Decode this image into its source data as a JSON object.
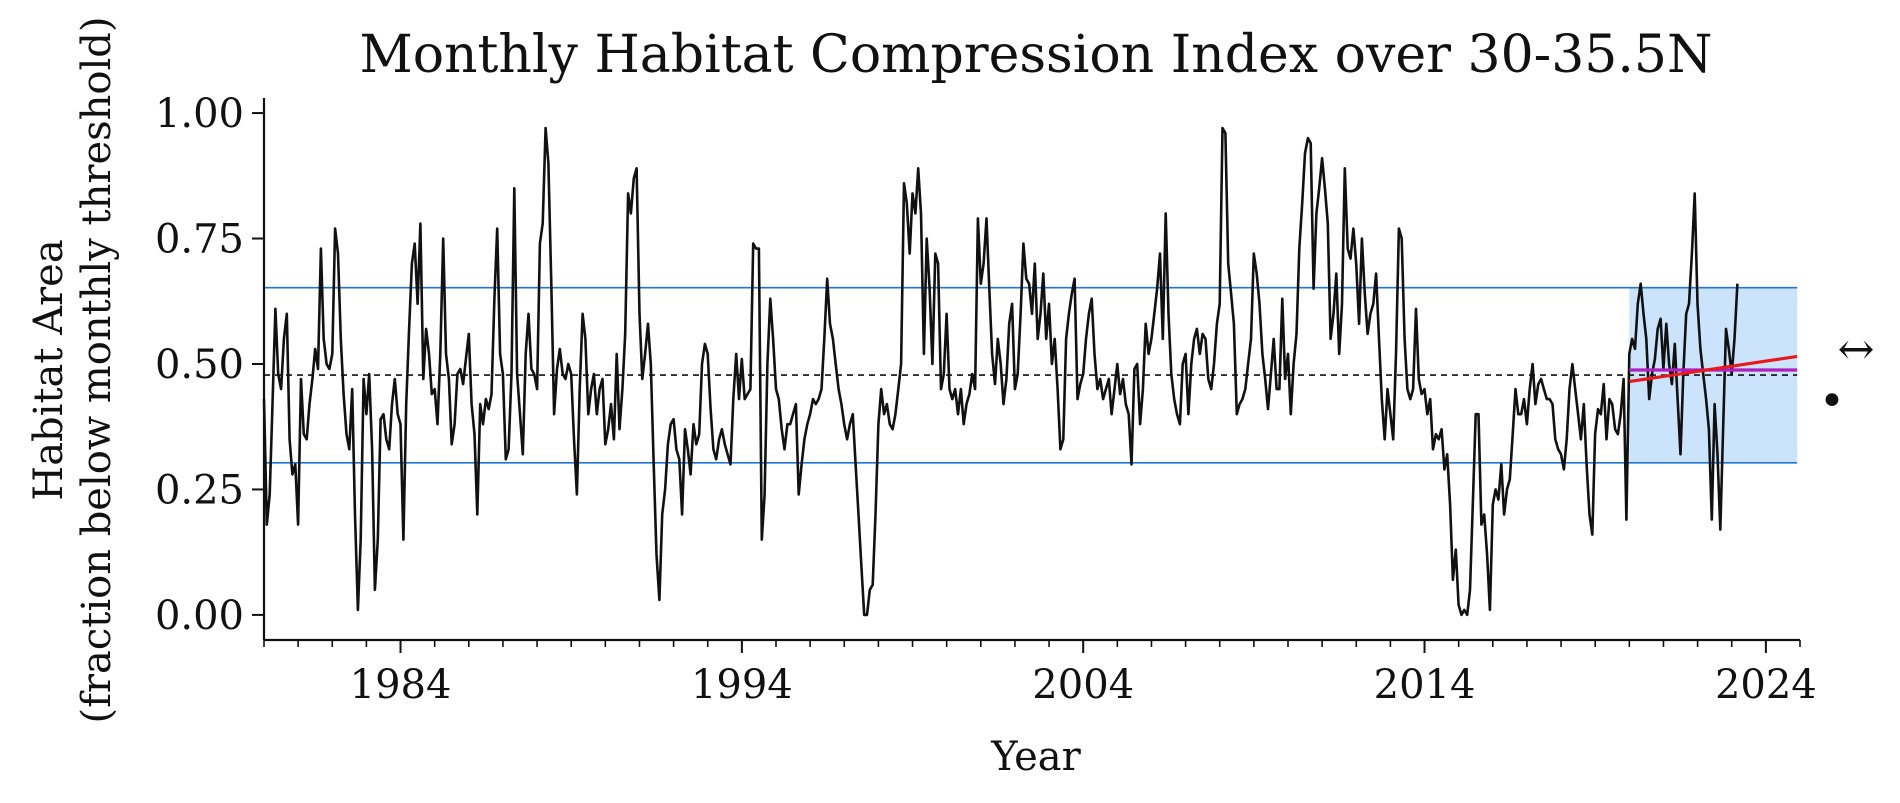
{
  "chart_data": {
    "type": "line",
    "title": "Monthly Habitat Compression Index over 30-35.5N",
    "xlabel": "Year",
    "ylabel_lines": [
      "Habitat Area",
      "(fraction below monthly threshold)"
    ],
    "xlim": [
      1980,
      2025
    ],
    "ylim": [
      -0.05,
      1.03
    ],
    "x_ticks": [
      1984,
      1994,
      2004,
      2014,
      2024
    ],
    "x_tick_labels": [
      "1984",
      "1994",
      "2004",
      "2014",
      "2024"
    ],
    "y_ticks": [
      0.0,
      0.25,
      0.5,
      0.75,
      1.0
    ],
    "y_tick_labels": [
      "0.00",
      "0.25",
      "0.50",
      "0.75",
      "1.00"
    ],
    "grid": false,
    "colors": {
      "series": "#111111",
      "threshold_lines": "#1f77d4",
      "mean_line": "#111111",
      "highlight_fill": "#cce4fb",
      "trend_red": "#e8191c",
      "trend_purple": "#b01fc0"
    },
    "reference_lines": {
      "upper_threshold": 0.652,
      "lower_threshold": 0.303,
      "long_term_mean": 0.478
    },
    "highlight_period": {
      "x": [
        2020.0,
        2024.917
      ],
      "y": [
        0.303,
        0.652
      ]
    },
    "recent_trend": {
      "x": [
        2020.0,
        2024.917
      ],
      "y": [
        0.465,
        0.515
      ]
    },
    "recent_mean": {
      "x": [
        2020.0,
        2024.917
      ],
      "y": 0.488
    },
    "side_markers": {
      "arrow": "↔",
      "dot": "•"
    },
    "series": [
      {
        "x_start": 1980.0,
        "x_step": 0.08333,
        "values": [
          0.43,
          0.18,
          0.24,
          0.42,
          0.61,
          0.48,
          0.45,
          0.55,
          0.6,
          0.35,
          0.28,
          0.3,
          0.18,
          0.47,
          0.36,
          0.35,
          0.42,
          0.47,
          0.53,
          0.49,
          0.73,
          0.55,
          0.5,
          0.49,
          0.52,
          0.77,
          0.72,
          0.55,
          0.44,
          0.36,
          0.33,
          0.45,
          0.2,
          0.01,
          0.15,
          0.47,
          0.4,
          0.48,
          0.33,
          0.05,
          0.15,
          0.39,
          0.4,
          0.35,
          0.33,
          0.42,
          0.47,
          0.4,
          0.38,
          0.15,
          0.42,
          0.57,
          0.7,
          0.74,
          0.62,
          0.78,
          0.47,
          0.57,
          0.52,
          0.44,
          0.45,
          0.38,
          0.52,
          0.75,
          0.52,
          0.47,
          0.34,
          0.38,
          0.48,
          0.49,
          0.46,
          0.51,
          0.56,
          0.42,
          0.36,
          0.2,
          0.42,
          0.38,
          0.43,
          0.41,
          0.44,
          0.63,
          0.77,
          0.52,
          0.48,
          0.31,
          0.33,
          0.48,
          0.85,
          0.48,
          0.4,
          0.32,
          0.52,
          0.6,
          0.49,
          0.48,
          0.45,
          0.74,
          0.78,
          0.97,
          0.9,
          0.66,
          0.4,
          0.49,
          0.53,
          0.48,
          0.47,
          0.5,
          0.48,
          0.35,
          0.24,
          0.45,
          0.6,
          0.55,
          0.4,
          0.45,
          0.48,
          0.4,
          0.45,
          0.47,
          0.34,
          0.37,
          0.42,
          0.35,
          0.52,
          0.37,
          0.45,
          0.56,
          0.84,
          0.8,
          0.87,
          0.89,
          0.6,
          0.47,
          0.52,
          0.58,
          0.5,
          0.3,
          0.12,
          0.03,
          0.2,
          0.25,
          0.34,
          0.38,
          0.39,
          0.33,
          0.31,
          0.2,
          0.37,
          0.33,
          0.28,
          0.38,
          0.34,
          0.36,
          0.5,
          0.54,
          0.52,
          0.41,
          0.33,
          0.31,
          0.35,
          0.37,
          0.34,
          0.32,
          0.3,
          0.43,
          0.52,
          0.43,
          0.51,
          0.43,
          0.44,
          0.45,
          0.74,
          0.73,
          0.73,
          0.15,
          0.24,
          0.5,
          0.63,
          0.55,
          0.45,
          0.43,
          0.37,
          0.33,
          0.38,
          0.38,
          0.4,
          0.42,
          0.24,
          0.3,
          0.35,
          0.38,
          0.4,
          0.43,
          0.42,
          0.43,
          0.45,
          0.55,
          0.67,
          0.58,
          0.55,
          0.5,
          0.45,
          0.42,
          0.38,
          0.35,
          0.38,
          0.4,
          0.3,
          0.2,
          0.1,
          0.0,
          0.0,
          0.05,
          0.06,
          0.2,
          0.38,
          0.45,
          0.4,
          0.42,
          0.38,
          0.37,
          0.4,
          0.45,
          0.5,
          0.86,
          0.82,
          0.72,
          0.84,
          0.8,
          0.89,
          0.8,
          0.52,
          0.75,
          0.65,
          0.5,
          0.72,
          0.7,
          0.45,
          0.48,
          0.6,
          0.45,
          0.43,
          0.45,
          0.4,
          0.45,
          0.38,
          0.42,
          0.44,
          0.48,
          0.45,
          0.79,
          0.66,
          0.7,
          0.79,
          0.65,
          0.52,
          0.46,
          0.55,
          0.5,
          0.42,
          0.47,
          0.58,
          0.62,
          0.45,
          0.48,
          0.6,
          0.74,
          0.67,
          0.66,
          0.6,
          0.7,
          0.55,
          0.6,
          0.68,
          0.55,
          0.62,
          0.5,
          0.55,
          0.45,
          0.33,
          0.35,
          0.55,
          0.6,
          0.64,
          0.67,
          0.43,
          0.46,
          0.48,
          0.55,
          0.6,
          0.63,
          0.52,
          0.45,
          0.47,
          0.43,
          0.45,
          0.47,
          0.4,
          0.45,
          0.5,
          0.44,
          0.47,
          0.42,
          0.4,
          0.3,
          0.49,
          0.5,
          0.38,
          0.45,
          0.58,
          0.52,
          0.55,
          0.6,
          0.65,
          0.72,
          0.55,
          0.8,
          0.6,
          0.48,
          0.43,
          0.4,
          0.38,
          0.5,
          0.52,
          0.4,
          0.5,
          0.55,
          0.57,
          0.52,
          0.56,
          0.55,
          0.47,
          0.45,
          0.5,
          0.58,
          0.62,
          0.97,
          0.96,
          0.7,
          0.64,
          0.58,
          0.4,
          0.42,
          0.43,
          0.45,
          0.5,
          0.55,
          0.72,
          0.68,
          0.62,
          0.52,
          0.47,
          0.41,
          0.48,
          0.55,
          0.45,
          0.45,
          0.63,
          0.47,
          0.52,
          0.4,
          0.5,
          0.56,
          0.73,
          0.82,
          0.92,
          0.95,
          0.94,
          0.65,
          0.8,
          0.85,
          0.91,
          0.85,
          0.78,
          0.55,
          0.6,
          0.68,
          0.52,
          0.62,
          0.89,
          0.73,
          0.71,
          0.77,
          0.7,
          0.58,
          0.75,
          0.64,
          0.56,
          0.6,
          0.62,
          0.68,
          0.55,
          0.43,
          0.35,
          0.45,
          0.4,
          0.35,
          0.52,
          0.77,
          0.75,
          0.55,
          0.45,
          0.43,
          0.45,
          0.61,
          0.47,
          0.44,
          0.45,
          0.4,
          0.43,
          0.33,
          0.36,
          0.35,
          0.37,
          0.29,
          0.32,
          0.22,
          0.07,
          0.13,
          0.02,
          0.0,
          0.01,
          0.0,
          0.05,
          0.22,
          0.4,
          0.4,
          0.18,
          0.2,
          0.12,
          0.01,
          0.22,
          0.25,
          0.23,
          0.3,
          0.2,
          0.25,
          0.27,
          0.36,
          0.45,
          0.4,
          0.4,
          0.43,
          0.38,
          0.45,
          0.5,
          0.42,
          0.46,
          0.47,
          0.45,
          0.43,
          0.43,
          0.42,
          0.35,
          0.33,
          0.32,
          0.29,
          0.35,
          0.45,
          0.5,
          0.45,
          0.4,
          0.35,
          0.42,
          0.3,
          0.2,
          0.16,
          0.36,
          0.41,
          0.4,
          0.46,
          0.35,
          0.43,
          0.42,
          0.37,
          0.36,
          0.4,
          0.47,
          0.19,
          0.52,
          0.55,
          0.53,
          0.62,
          0.66,
          0.6,
          0.55,
          0.43,
          0.48,
          0.51,
          0.57,
          0.59,
          0.49,
          0.58,
          0.5,
          0.46,
          0.54,
          0.43,
          0.32,
          0.48,
          0.6,
          0.62,
          0.72,
          0.84,
          0.62,
          0.53,
          0.48,
          0.43,
          0.37,
          0.19,
          0.42,
          0.32,
          0.17,
          0.37,
          0.57,
          0.53,
          0.48,
          0.55,
          0.66
        ]
      }
    ]
  }
}
